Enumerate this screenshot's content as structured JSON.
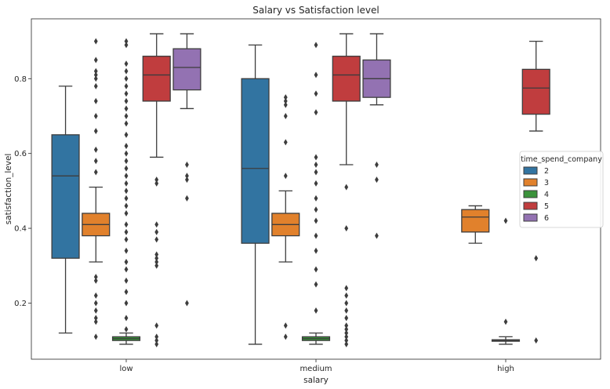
{
  "chart_data": {
    "type": "box",
    "title": "Salary vs Satisfaction level",
    "xlabel": "salary",
    "ylabel": "satisfaction_level",
    "categories": [
      "low",
      "medium",
      "high"
    ],
    "ylim": [
      0.05,
      0.96
    ],
    "yticks": [
      0.2,
      0.4,
      0.6,
      0.8
    ],
    "grid": false,
    "legend": {
      "title": "time_spend_company",
      "placement": "center-right",
      "entries": [
        "2",
        "3",
        "4",
        "5",
        "6"
      ]
    },
    "colors": {
      "2": "#3274a1",
      "3": "#e1812c",
      "4": "#3a923a",
      "5": "#c03d3e",
      "6": "#9372b2"
    },
    "series": [
      {
        "name": "2",
        "boxes": [
          {
            "category": "low",
            "whislo": 0.12,
            "q1": 0.32,
            "med": 0.54,
            "q3": 0.65,
            "whishi": 0.78,
            "fliers": []
          },
          {
            "category": "medium",
            "whislo": 0.09,
            "q1": 0.36,
            "med": 0.56,
            "q3": 0.8,
            "whishi": 0.89,
            "fliers": []
          }
        ]
      },
      {
        "name": "3",
        "boxes": [
          {
            "category": "low",
            "whislo": 0.31,
            "q1": 0.38,
            "med": 0.41,
            "q3": 0.44,
            "whishi": 0.51,
            "fliers": [
              0.11,
              0.15,
              0.16,
              0.18,
              0.2,
              0.22,
              0.26,
              0.27,
              0.55,
              0.58,
              0.61,
              0.66,
              0.7,
              0.74,
              0.78,
              0.8,
              0.81,
              0.82,
              0.85,
              0.9
            ]
          },
          {
            "category": "medium",
            "whislo": 0.31,
            "q1": 0.38,
            "med": 0.41,
            "q3": 0.44,
            "whishi": 0.5,
            "fliers": [
              0.11,
              0.14,
              0.54,
              0.63,
              0.7,
              0.73,
              0.74,
              0.75
            ]
          },
          {
            "category": "high",
            "whislo": 0.36,
            "q1": 0.39,
            "med": 0.43,
            "q3": 0.45,
            "whishi": 0.46,
            "fliers": []
          }
        ]
      },
      {
        "name": "4",
        "boxes": [
          {
            "category": "low",
            "whislo": 0.09,
            "q1": 0.1,
            "med": 0.105,
            "q3": 0.11,
            "whishi": 0.12,
            "fliers": [
              0.13,
              0.16,
              0.2,
              0.23,
              0.26,
              0.29,
              0.31,
              0.34,
              0.37,
              0.39,
              0.41,
              0.44,
              0.46,
              0.48,
              0.5,
              0.52,
              0.54,
              0.56,
              0.58,
              0.6,
              0.62,
              0.65,
              0.68,
              0.7,
              0.72,
              0.74,
              0.76,
              0.78,
              0.8,
              0.82,
              0.84,
              0.89,
              0.9
            ]
          },
          {
            "category": "medium",
            "whislo": 0.09,
            "q1": 0.1,
            "med": 0.105,
            "q3": 0.11,
            "whishi": 0.12,
            "fliers": [
              0.18,
              0.25,
              0.29,
              0.34,
              0.38,
              0.42,
              0.45,
              0.48,
              0.52,
              0.55,
              0.57,
              0.59,
              0.71,
              0.76,
              0.81,
              0.89
            ]
          },
          {
            "category": "high",
            "whislo": 0.09,
            "q1": 0.098,
            "med": 0.1,
            "q3": 0.102,
            "whishi": 0.11,
            "fliers": [
              0.15,
              0.42
            ]
          }
        ]
      },
      {
        "name": "5",
        "boxes": [
          {
            "category": "low",
            "whislo": 0.59,
            "q1": 0.74,
            "med": 0.81,
            "q3": 0.86,
            "whishi": 0.92,
            "fliers": [
              0.09,
              0.1,
              0.11,
              0.14,
              0.3,
              0.31,
              0.32,
              0.33,
              0.37,
              0.39,
              0.41,
              0.52,
              0.53
            ]
          },
          {
            "category": "medium",
            "whislo": 0.57,
            "q1": 0.74,
            "med": 0.81,
            "q3": 0.86,
            "whishi": 0.92,
            "fliers": [
              0.09,
              0.1,
              0.11,
              0.12,
              0.13,
              0.14,
              0.16,
              0.18,
              0.2,
              0.22,
              0.24,
              0.4,
              0.51
            ]
          },
          {
            "category": "high",
            "whislo": 0.66,
            "q1": 0.705,
            "med": 0.775,
            "q3": 0.825,
            "whishi": 0.9,
            "fliers": [
              0.1,
              0.32
            ]
          }
        ]
      },
      {
        "name": "6",
        "boxes": [
          {
            "category": "low",
            "whislo": 0.72,
            "q1": 0.77,
            "med": 0.83,
            "q3": 0.88,
            "whishi": 0.92,
            "fliers": [
              0.2,
              0.48,
              0.53,
              0.54,
              0.57
            ]
          },
          {
            "category": "medium",
            "whislo": 0.73,
            "q1": 0.75,
            "med": 0.8,
            "q3": 0.85,
            "whishi": 0.92,
            "fliers": [
              0.38,
              0.53,
              0.57
            ]
          }
        ]
      }
    ]
  }
}
